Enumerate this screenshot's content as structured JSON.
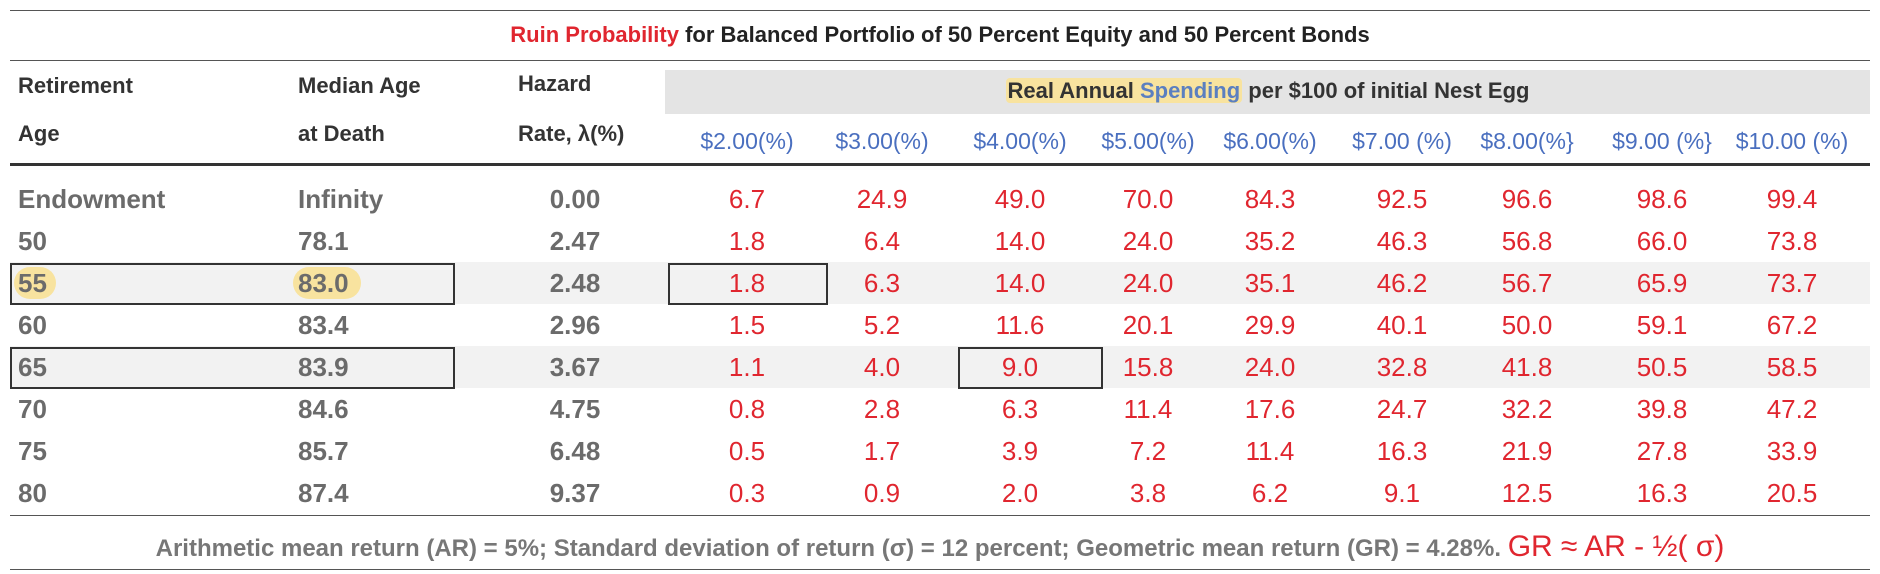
{
  "title": {
    "highlight": "Ruin Probability",
    "rest": "for Balanced Portfolio of 50 Percent Equity and 50 Percent Bonds"
  },
  "headers": {
    "col1_line1": "Retirement",
    "col1_line2": "Age",
    "col2_line1": "Median Age",
    "col2_line2": "at Death",
    "col3_line1": "Hazard",
    "col3_line2": "Rate, λ(%)",
    "spending_part1": "Real Annual",
    "spending_part2": "Spending",
    "spending_rest": "per $100 of initial Nest Egg"
  },
  "spending_columns": [
    "$2.00(%)",
    "$3.00(%)",
    "$4.00(%)",
    "$5.00(%)",
    "$6.00(%)",
    "$7.00 (%)",
    "$8.00(%}",
    "$9.00 (%}",
    "$10.00 (%)"
  ],
  "rows": [
    {
      "age": "Endowment",
      "median": "Infinity",
      "hazard": "0.00",
      "values": [
        "6.7",
        "24.9",
        "49.0",
        "70.0",
        "84.3",
        "92.5",
        "96.6",
        "98.6",
        "99.4"
      ]
    },
    {
      "age": "50",
      "median": "78.1",
      "hazard": "2.47",
      "values": [
        "1.8",
        "6.4",
        "14.0",
        "24.0",
        "35.2",
        "46.3",
        "56.8",
        "66.0",
        "73.8"
      ]
    },
    {
      "age": "55",
      "median": "83.0",
      "hazard": "2.48",
      "values": [
        "1.8",
        "6.3",
        "14.0",
        "24.0",
        "35.1",
        "46.2",
        "56.7",
        "65.9",
        "73.7"
      ]
    },
    {
      "age": "60",
      "median": "83.4",
      "hazard": "2.96",
      "values": [
        "1.5",
        "5.2",
        "11.6",
        "20.1",
        "29.9",
        "40.1",
        "50.0",
        "59.1",
        "67.2"
      ]
    },
    {
      "age": "65",
      "median": "83.9",
      "hazard": "3.67",
      "values": [
        "1.1",
        "4.0",
        "9.0",
        "15.8",
        "24.0",
        "32.8",
        "41.8",
        "50.5",
        "58.5"
      ]
    },
    {
      "age": "70",
      "median": "84.6",
      "hazard": "4.75",
      "values": [
        "0.8",
        "2.8",
        "6.3",
        "11.4",
        "17.6",
        "24.7",
        "32.2",
        "39.8",
        "47.2"
      ]
    },
    {
      "age": "75",
      "median": "85.7",
      "hazard": "6.48",
      "values": [
        "0.5",
        "1.7",
        "3.9",
        "7.2",
        "11.4",
        "16.3",
        "21.9",
        "27.8",
        "33.9"
      ]
    },
    {
      "age": "80",
      "median": "87.4",
      "hazard": "9.37",
      "values": [
        "0.3",
        "0.9",
        "2.0",
        "3.8",
        "6.2",
        "9.1",
        "12.5",
        "16.3",
        "20.5"
      ]
    }
  ],
  "footer": {
    "text": "Arithmetic mean return (AR) = 5%;  Standard deviation of return (σ) = 12 percent;  Geometric mean return (GR) = 4.28%.",
    "formula": "GR ≈ AR - ½( σ)"
  },
  "colors": {
    "accent_red": "#e0262f",
    "header_blue": "#4a6fbf",
    "highlight_yellow": "#f8e39f",
    "label_gray": "#6b6b6b"
  }
}
